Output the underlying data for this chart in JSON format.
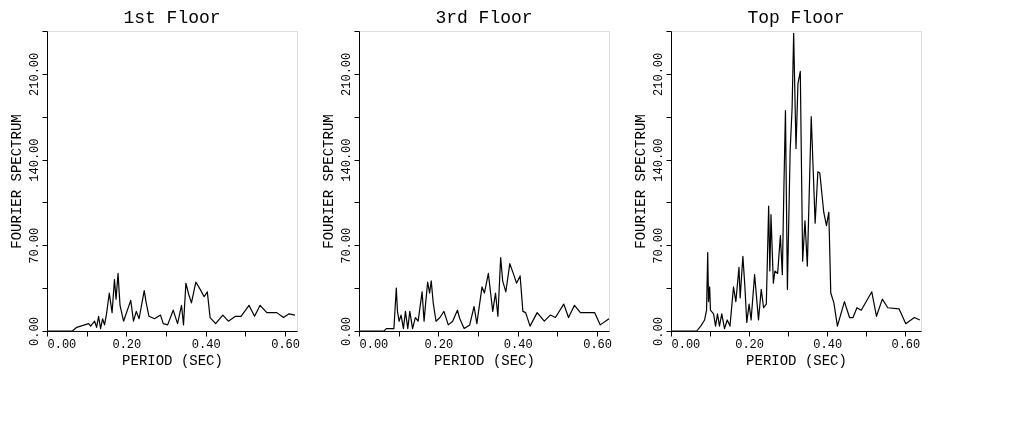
{
  "chart_data": [
    {
      "type": "line",
      "title": "1st Floor",
      "xlabel": "PERIOD (SEC)",
      "ylabel": "FOURIER SPECTRUM",
      "color": "#000000",
      "grid": false,
      "xlim": [
        0,
        0.63
      ],
      "ylim": [
        0,
        245
      ],
      "xticks": [
        {
          "value": 0,
          "label": "0.00"
        },
        {
          "value": 0.1,
          "label": null
        },
        {
          "value": 0.2,
          "label": "0.20"
        },
        {
          "value": 0.3,
          "label": null
        },
        {
          "value": 0.4,
          "label": "0.40"
        },
        {
          "value": 0.5,
          "label": null
        },
        {
          "value": 0.6,
          "label": "0.60"
        }
      ],
      "yticks": [
        {
          "value": 0,
          "label": "0.00"
        },
        {
          "value": 35,
          "label": null
        },
        {
          "value": 70,
          "label": "70.00"
        },
        {
          "value": 105,
          "label": null
        },
        {
          "value": 140,
          "label": "140.00"
        },
        {
          "value": 175,
          "label": null
        },
        {
          "value": 210,
          "label": "210.00"
        },
        {
          "value": 245,
          "label": null
        }
      ],
      "x": [
        0,
        0.064,
        0.075,
        0.085,
        0.095,
        0.105,
        0.11,
        0.12,
        0.125,
        0.13,
        0.135,
        0.14,
        0.145,
        0.15,
        0.157,
        0.164,
        0.17,
        0.174,
        0.179,
        0.184,
        0.193,
        0.211,
        0.218,
        0.225,
        0.232,
        0.245,
        0.25,
        0.257,
        0.271,
        0.286,
        0.293,
        0.304,
        0.318,
        0.329,
        0.339,
        0.344,
        0.35,
        0.357,
        0.364,
        0.375,
        0.386,
        0.396,
        0.404,
        0.411,
        0.425,
        0.443,
        0.457,
        0.475,
        0.489,
        0.509,
        0.523,
        0.537,
        0.554,
        0.579,
        0.596,
        0.61,
        0.625
      ],
      "values": [
        0,
        0,
        3,
        4,
        5,
        6,
        4,
        8,
        3,
        12,
        2,
        10,
        5,
        14,
        31,
        15,
        42,
        26,
        47,
        21,
        8,
        25,
        8,
        16,
        10,
        33,
        23,
        12,
        10,
        13,
        6,
        5,
        17,
        6,
        21,
        5,
        39,
        30,
        23,
        40,
        34,
        28,
        32,
        11,
        6,
        13,
        8,
        12,
        12,
        21,
        12,
        21,
        15,
        15,
        11,
        14,
        13
      ]
    },
    {
      "type": "line",
      "title": "3rd Floor",
      "xlabel": "PERIOD (SEC)",
      "ylabel": "FOURIER SPECTRUM",
      "color": "#000000",
      "grid": false,
      "xlim": [
        0,
        0.63
      ],
      "ylim": [
        0,
        245
      ],
      "xticks": [
        {
          "value": 0,
          "label": "0.00"
        },
        {
          "value": 0.1,
          "label": null
        },
        {
          "value": 0.2,
          "label": "0.20"
        },
        {
          "value": 0.3,
          "label": null
        },
        {
          "value": 0.4,
          "label": "0.40"
        },
        {
          "value": 0.5,
          "label": null
        },
        {
          "value": 0.6,
          "label": "0.60"
        }
      ],
      "yticks": [
        {
          "value": 0,
          "label": "0.00"
        },
        {
          "value": 35,
          "label": null
        },
        {
          "value": 70,
          "label": "70.00"
        },
        {
          "value": 105,
          "label": null
        },
        {
          "value": 140,
          "label": "140.00"
        },
        {
          "value": 175,
          "label": null
        },
        {
          "value": 210,
          "label": "210.00"
        },
        {
          "value": 245,
          "label": null
        }
      ],
      "x": [
        0,
        0.063,
        0.069,
        0.088,
        0.094,
        0.097,
        0.101,
        0.106,
        0.112,
        0.117,
        0.123,
        0.128,
        0.135,
        0.142,
        0.149,
        0.159,
        0.164,
        0.168,
        0.173,
        0.178,
        0.182,
        0.187,
        0.194,
        0.204,
        0.214,
        0.225,
        0.236,
        0.248,
        0.254,
        0.265,
        0.279,
        0.29,
        0.297,
        0.31,
        0.316,
        0.326,
        0.337,
        0.344,
        0.35,
        0.357,
        0.362,
        0.37,
        0.38,
        0.391,
        0.397,
        0.406,
        0.413,
        0.42,
        0.431,
        0.449,
        0.467,
        0.482,
        0.495,
        0.516,
        0.528,
        0.543,
        0.558,
        0.594,
        0.608,
        0.63
      ],
      "values": [
        0,
        0,
        2,
        2,
        35,
        16,
        8,
        13,
        2,
        16,
        2,
        16,
        2,
        11,
        8,
        32,
        8,
        23,
        40,
        31,
        41,
        23,
        8,
        11,
        16,
        5,
        8,
        17,
        10,
        2,
        5,
        20,
        6,
        36,
        31,
        47,
        16,
        31,
        12,
        60,
        41,
        32,
        55,
        45,
        39,
        45,
        16,
        15,
        4,
        15,
        8,
        13,
        11,
        22,
        11,
        21,
        15,
        15,
        5,
        10
      ]
    },
    {
      "type": "line",
      "title": "Top Floor",
      "xlabel": "PERIOD (SEC)",
      "ylabel": "FOURIER SPECTRUM",
      "color": "#000000",
      "grid": false,
      "xlim": [
        0,
        0.64
      ],
      "ylim": [
        0,
        245
      ],
      "xticks": [
        {
          "value": 0,
          "label": "0.00"
        },
        {
          "value": 0.1,
          "label": null
        },
        {
          "value": 0.2,
          "label": "0.20"
        },
        {
          "value": 0.3,
          "label": null
        },
        {
          "value": 0.4,
          "label": "0.40"
        },
        {
          "value": 0.5,
          "label": null
        },
        {
          "value": 0.6,
          "label": "0.60"
        }
      ],
      "yticks": [
        {
          "value": 0,
          "label": "0.00"
        },
        {
          "value": 35,
          "label": null
        },
        {
          "value": 70,
          "label": "70.00"
        },
        {
          "value": 105,
          "label": null
        },
        {
          "value": 140,
          "label": "140.00"
        },
        {
          "value": 175,
          "label": null
        },
        {
          "value": 210,
          "label": "210.00"
        },
        {
          "value": 245,
          "label": null
        }
      ],
      "x": [
        0,
        0.066,
        0.076,
        0.086,
        0.091,
        0.094,
        0.096,
        0.099,
        0.101,
        0.109,
        0.114,
        0.119,
        0.124,
        0.13,
        0.137,
        0.144,
        0.151,
        0.16,
        0.166,
        0.174,
        0.177,
        0.184,
        0.189,
        0.194,
        0.2,
        0.205,
        0.214,
        0.224,
        0.231,
        0.237,
        0.244,
        0.25,
        0.253,
        0.256,
        0.262,
        0.266,
        0.273,
        0.28,
        0.285,
        0.289,
        0.293,
        0.298,
        0.305,
        0.31,
        0.314,
        0.32,
        0.325,
        0.331,
        0.337,
        0.343,
        0.349,
        0.359,
        0.369,
        0.376,
        0.381,
        0.391,
        0.398,
        0.404,
        0.409,
        0.417,
        0.426,
        0.444,
        0.457,
        0.466,
        0.476,
        0.487,
        0.514,
        0.526,
        0.541,
        0.555,
        0.584,
        0.601,
        0.623,
        0.637
      ],
      "values": [
        0,
        0,
        4,
        9,
        17,
        64,
        24,
        36,
        17,
        14,
        4,
        14,
        4,
        14,
        2,
        9,
        4,
        36,
        24,
        52,
        27,
        61,
        37,
        7,
        22,
        9,
        46,
        9,
        34,
        19,
        22,
        102,
        49,
        95,
        39,
        49,
        47,
        78,
        46,
        117,
        180,
        34,
        147,
        182,
        243,
        149,
        202,
        212,
        57,
        90,
        53,
        175,
        88,
        130,
        129,
        97,
        86,
        97,
        31,
        23,
        4,
        24,
        11,
        11,
        19,
        17,
        32,
        12,
        26,
        19,
        18,
        6,
        11,
        9
      ]
    }
  ]
}
